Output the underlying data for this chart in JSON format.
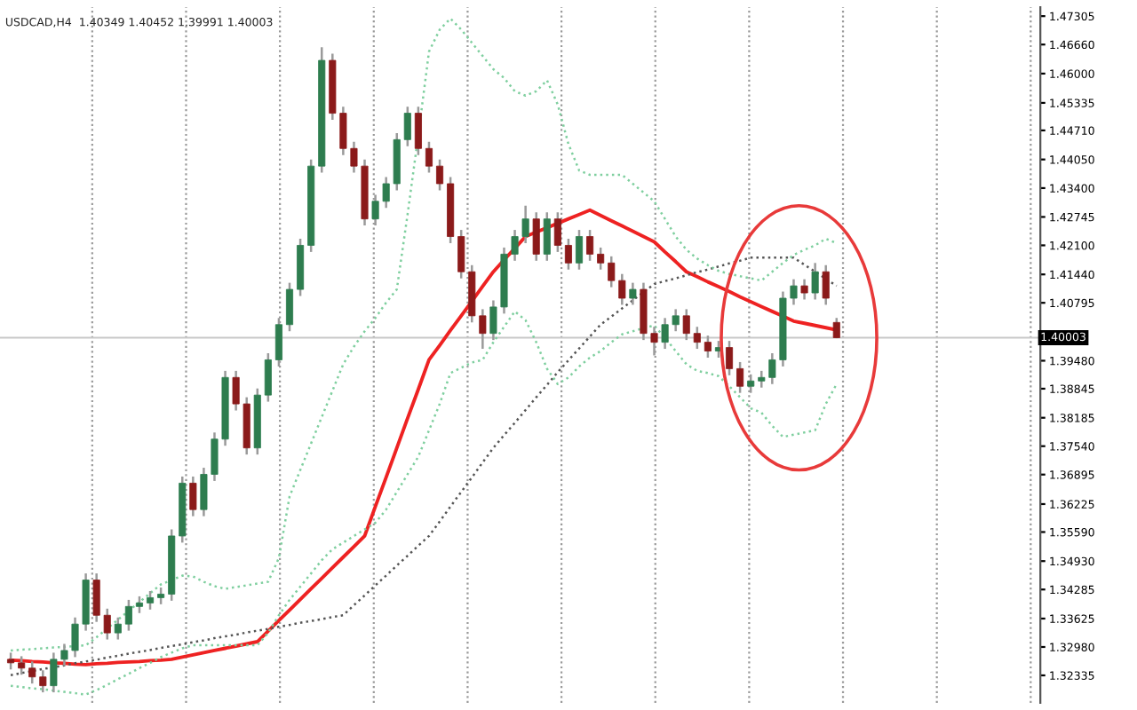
{
  "chart_data": {
    "type": "candlestick",
    "title": "USDCAD,H4  1.40349 1.40452 1.39991 1.40003",
    "categories": [
      null,
      null,
      null,
      null,
      null,
      null,
      null,
      null,
      null,
      null,
      null,
      null,
      null,
      null,
      null,
      null,
      null,
      null,
      null,
      null,
      null,
      null,
      null,
      null,
      null,
      null,
      null,
      null,
      null,
      null,
      null,
      null,
      null,
      null,
      null,
      null,
      null,
      null,
      null,
      null,
      null,
      null,
      null,
      null,
      null,
      null,
      null,
      null,
      null,
      null,
      null,
      null,
      null,
      null,
      null,
      null,
      null,
      null,
      null,
      null,
      null,
      null,
      null,
      null,
      null,
      null,
      null,
      null,
      null,
      null,
      null,
      null,
      null,
      null,
      null,
      null,
      null,
      null
    ],
    "ohlc": [
      [
        1.327,
        1.3285,
        1.3247,
        1.3262
      ],
      [
        1.3262,
        1.3277,
        1.3235,
        1.325
      ],
      [
        1.325,
        1.3265,
        1.3215,
        1.323
      ],
      [
        1.323,
        1.3245,
        1.3195,
        1.321
      ],
      [
        1.321,
        1.3285,
        1.3195,
        1.327
      ],
      [
        1.327,
        1.3305,
        1.3255,
        1.329
      ],
      [
        1.329,
        1.3365,
        1.3275,
        1.335
      ],
      [
        1.335,
        1.3465,
        1.3335,
        1.345
      ],
      [
        1.345,
        1.3465,
        1.3355,
        1.337
      ],
      [
        1.337,
        1.3385,
        1.3315,
        1.333
      ],
      [
        1.333,
        1.3365,
        1.3315,
        1.335
      ],
      [
        1.335,
        1.3405,
        1.3335,
        1.339
      ],
      [
        1.339,
        1.3413,
        1.3375,
        1.3398
      ],
      [
        1.3398,
        1.3425,
        1.3383,
        1.341
      ],
      [
        1.341,
        1.3433,
        1.3395,
        1.3418
      ],
      [
        1.3418,
        1.3565,
        1.3403,
        1.355
      ],
      [
        1.355,
        1.3685,
        1.3535,
        1.367
      ],
      [
        1.367,
        1.3685,
        1.3595,
        1.361
      ],
      [
        1.361,
        1.3705,
        1.3595,
        1.369
      ],
      [
        1.369,
        1.3785,
        1.3675,
        1.377
      ],
      [
        1.377,
        1.3925,
        1.3755,
        1.391
      ],
      [
        1.391,
        1.3925,
        1.3835,
        1.385
      ],
      [
        1.385,
        1.3865,
        1.3735,
        1.375
      ],
      [
        1.375,
        1.3885,
        1.3735,
        1.387
      ],
      [
        1.387,
        1.3965,
        1.3855,
        1.395
      ],
      [
        1.395,
        1.4045,
        1.3935,
        1.403
      ],
      [
        1.403,
        1.4125,
        1.4015,
        1.411
      ],
      [
        1.411,
        1.4225,
        1.4095,
        1.421
      ],
      [
        1.421,
        1.4405,
        1.4195,
        1.439
      ],
      [
        1.439,
        1.466,
        1.4375,
        1.463
      ],
      [
        1.463,
        1.4645,
        1.4495,
        1.451
      ],
      [
        1.451,
        1.4525,
        1.4415,
        1.443
      ],
      [
        1.443,
        1.4445,
        1.4375,
        1.439
      ],
      [
        1.439,
        1.4405,
        1.4255,
        1.427
      ],
      [
        1.427,
        1.4325,
        1.4255,
        1.431
      ],
      [
        1.431,
        1.4365,
        1.4295,
        1.435
      ],
      [
        1.435,
        1.4465,
        1.4335,
        1.445
      ],
      [
        1.445,
        1.4525,
        1.4435,
        1.451
      ],
      [
        1.451,
        1.4525,
        1.4415,
        1.443
      ],
      [
        1.443,
        1.4445,
        1.4375,
        1.439
      ],
      [
        1.439,
        1.4405,
        1.4335,
        1.435
      ],
      [
        1.435,
        1.4365,
        1.4215,
        1.423
      ],
      [
        1.423,
        1.4245,
        1.4135,
        1.415
      ],
      [
        1.415,
        1.4165,
        1.4035,
        1.405
      ],
      [
        1.405,
        1.4065,
        1.3975,
        1.401
      ],
      [
        1.401,
        1.4085,
        1.3995,
        1.407
      ],
      [
        1.407,
        1.4205,
        1.4055,
        1.419
      ],
      [
        1.419,
        1.4245,
        1.4175,
        1.423
      ],
      [
        1.423,
        1.43,
        1.4215,
        1.427
      ],
      [
        1.427,
        1.4285,
        1.4175,
        1.419
      ],
      [
        1.419,
        1.4285,
        1.4175,
        1.427
      ],
      [
        1.427,
        1.4285,
        1.4195,
        1.421
      ],
      [
        1.421,
        1.4225,
        1.4155,
        1.417
      ],
      [
        1.417,
        1.4245,
        1.4155,
        1.423
      ],
      [
        1.423,
        1.4245,
        1.4175,
        1.419
      ],
      [
        1.419,
        1.4205,
        1.4155,
        1.417
      ],
      [
        1.417,
        1.4185,
        1.4115,
        1.413
      ],
      [
        1.413,
        1.4145,
        1.4075,
        1.409
      ],
      [
        1.409,
        1.4125,
        1.4075,
        1.411
      ],
      [
        1.411,
        1.4125,
        1.3995,
        1.401
      ],
      [
        1.401,
        1.4025,
        1.396,
        1.399
      ],
      [
        1.399,
        1.4045,
        1.3975,
        1.403
      ],
      [
        1.403,
        1.4065,
        1.4015,
        1.405
      ],
      [
        1.405,
        1.4065,
        1.3995,
        1.401
      ],
      [
        1.401,
        1.4025,
        1.3975,
        1.399
      ],
      [
        1.399,
        1.4005,
        1.3955,
        1.397
      ],
      [
        1.397,
        1.3993,
        1.3955,
        1.3978
      ],
      [
        1.3978,
        1.3993,
        1.3915,
        1.393
      ],
      [
        1.393,
        1.3945,
        1.3875,
        1.389
      ],
      [
        1.389,
        1.3917,
        1.3875,
        1.3902
      ],
      [
        1.3902,
        1.3925,
        1.3887,
        1.391
      ],
      [
        1.391,
        1.3965,
        1.3895,
        1.395
      ],
      [
        1.395,
        1.4105,
        1.3935,
        1.409
      ],
      [
        1.409,
        1.4133,
        1.4075,
        1.4118
      ],
      [
        1.4118,
        1.4133,
        1.4087,
        1.4102
      ],
      [
        1.4102,
        1.417,
        1.4087,
        1.415
      ],
      [
        1.415,
        1.4165,
        1.4075,
        1.409
      ],
      [
        1.40349,
        1.40452,
        1.39991,
        1.40003
      ]
    ],
    "series": [
      {
        "type": "line",
        "color": "#ee2222",
        "line_style": "solid",
        "values": [
          1.3268,
          1.3267,
          1.3265,
          1.3264,
          1.3262,
          1.3261,
          1.3259,
          1.3258,
          1.326,
          1.3261,
          1.3263,
          1.3264,
          1.3265,
          1.3267,
          1.3268,
          1.327,
          1.3275,
          1.328,
          1.3285,
          1.329,
          1.3295,
          1.33,
          1.3305,
          1.331,
          1.3334,
          1.3358,
          1.3382,
          1.3406,
          1.343,
          1.3454,
          1.3478,
          1.3502,
          1.3526,
          1.355,
          1.3617,
          1.3683,
          1.375,
          1.3817,
          1.3883,
          1.395,
          1.3983,
          1.4017,
          1.405,
          1.4083,
          1.4117,
          1.415,
          1.4177,
          1.4203,
          1.423,
          1.424,
          1.425,
          1.426,
          1.427,
          1.428,
          1.429,
          1.4278,
          1.4266,
          1.4254,
          1.4242,
          1.423,
          1.4218,
          1.4195,
          1.4173,
          1.415,
          1.4139,
          1.4127,
          1.4116,
          1.4105,
          1.4093,
          1.4082,
          1.4071,
          1.406,
          1.4049,
          1.4038,
          1.4033,
          1.4028,
          1.4023,
          1.4018
        ]
      },
      {
        "type": "line",
        "color": "#555555",
        "line_style": "dotted",
        "values": [
          1.3234,
          1.3239,
          1.3243,
          1.3248,
          1.3252,
          1.3256,
          1.3261,
          1.3265,
          1.3269,
          1.3274,
          1.3278,
          1.3283,
          1.3287,
          1.3291,
          1.3296,
          1.33,
          1.3304,
          1.3309,
          1.3313,
          1.3318,
          1.3322,
          1.3326,
          1.3331,
          1.3335,
          1.3339,
          1.3344,
          1.3348,
          1.3353,
          1.3357,
          1.3361,
          1.3366,
          1.337,
          1.3393,
          1.3415,
          1.3438,
          1.346,
          1.3483,
          1.3505,
          1.3528,
          1.355,
          1.3583,
          1.3617,
          1.365,
          1.3683,
          1.3717,
          1.375,
          1.3779,
          1.3807,
          1.3836,
          1.3865,
          1.3893,
          1.3922,
          1.3949,
          1.3976,
          1.4003,
          1.403,
          1.4048,
          1.4067,
          1.4085,
          1.4104,
          1.4122,
          1.4129,
          1.4135,
          1.4142,
          1.4149,
          1.4155,
          1.4162,
          1.4169,
          1.4175,
          1.4182,
          1.4182,
          1.4182,
          1.4182,
          1.4182,
          1.4166,
          1.415,
          1.4134,
          1.4118
        ]
      },
      {
        "type": "line",
        "color": "#7fcf9f",
        "line_style": "dotted",
        "values": [
          1.329,
          1.3292,
          1.3293,
          1.3295,
          1.3297,
          1.3298,
          1.33,
          1.3302,
          1.332,
          1.334,
          1.336,
          1.338,
          1.34,
          1.342,
          1.344,
          1.345,
          1.346,
          1.3458,
          1.3446,
          1.3436,
          1.343,
          1.3434,
          1.3438,
          1.3442,
          1.3446,
          1.35,
          1.364,
          1.37,
          1.376,
          1.382,
          1.388,
          1.394,
          1.398,
          1.4015,
          1.4045,
          1.408,
          1.411,
          1.428,
          1.446,
          1.465,
          1.47,
          1.4725,
          1.47,
          1.467,
          1.464,
          1.461,
          1.459,
          1.456,
          1.455,
          1.456,
          1.4585,
          1.453,
          1.444,
          1.438,
          1.437,
          1.437,
          1.437,
          1.437,
          1.435,
          1.433,
          1.431,
          1.427,
          1.423,
          1.42,
          1.418,
          1.4165,
          1.4152,
          1.4145,
          1.414,
          1.4135,
          1.413,
          1.415,
          1.417,
          1.4188,
          1.42,
          1.421,
          1.4225,
          1.4215
        ]
      },
      {
        "type": "line",
        "color": "#7fcf9f",
        "line_style": "dotted",
        "values": [
          1.321,
          1.3207,
          1.3204,
          1.3202,
          1.3199,
          1.3196,
          1.3193,
          1.319,
          1.32,
          1.3212,
          1.3225,
          1.3237,
          1.325,
          1.3262,
          1.3275,
          1.3285,
          1.3295,
          1.3302,
          1.3302,
          1.3302,
          1.3302,
          1.3302,
          1.3302,
          1.3302,
          1.333,
          1.337,
          1.3405,
          1.3435,
          1.3465,
          1.3495,
          1.352,
          1.3535,
          1.355,
          1.3565,
          1.358,
          1.361,
          1.365,
          1.369,
          1.373,
          1.379,
          1.385,
          1.392,
          1.3932,
          1.3944,
          1.395,
          1.399,
          1.4025,
          1.406,
          1.404,
          1.399,
          1.393,
          1.3895,
          1.391,
          1.3935,
          1.3955,
          1.397,
          1.399,
          1.4008,
          1.4015,
          1.4022,
          1.4028,
          1.4,
          1.397,
          1.394,
          1.3925,
          1.392,
          1.3913,
          1.389,
          1.3865,
          1.384,
          1.383,
          1.38,
          1.3775,
          1.378,
          1.3785,
          1.379,
          1.385,
          1.3895
        ]
      }
    ],
    "ref_lines": [
      {
        "axis": "y",
        "value": 1.40003,
        "label": "1.40003",
        "color": "#c8c8c8"
      }
    ],
    "ylim": [
      1.3171,
      1.4751
    ],
    "yticks": [
      {
        "value": 1.32335,
        "label": "1.32335"
      },
      {
        "value": 1.3298,
        "label": "1.32980"
      },
      {
        "value": 1.33625,
        "label": "1.33625"
      },
      {
        "value": 1.34285,
        "label": "1.34285"
      },
      {
        "value": 1.3493,
        "label": "1.34930"
      },
      {
        "value": 1.3559,
        "label": "1.35590"
      },
      {
        "value": 1.36225,
        "label": "1.36225"
      },
      {
        "value": 1.36895,
        "label": "1.36895"
      },
      {
        "value": 1.3754,
        "label": "1.37540"
      },
      {
        "value": 1.38185,
        "label": "1.38185"
      },
      {
        "value": 1.38845,
        "label": "1.38845"
      },
      {
        "value": 1.3948,
        "label": "1.39480"
      },
      {
        "value": 1.40795,
        "label": "1.40795"
      },
      {
        "value": 1.4144,
        "label": "1.41440"
      },
      {
        "value": 1.421,
        "label": "1.42100"
      },
      {
        "value": 1.42745,
        "label": "1.42745"
      },
      {
        "value": 1.434,
        "label": "1.43400"
      },
      {
        "value": 1.4405,
        "label": "1.44050"
      },
      {
        "value": 1.4471,
        "label": "1.44710"
      },
      {
        "value": 1.45335,
        "label": "1.45335"
      },
      {
        "value": 1.46,
        "label": "1.46000"
      },
      {
        "value": 1.4666,
        "label": "1.46660"
      },
      {
        "value": 1.47305,
        "label": "1.47305"
      }
    ],
    "tick_labels": "y",
    "grid": "x"
  }
}
